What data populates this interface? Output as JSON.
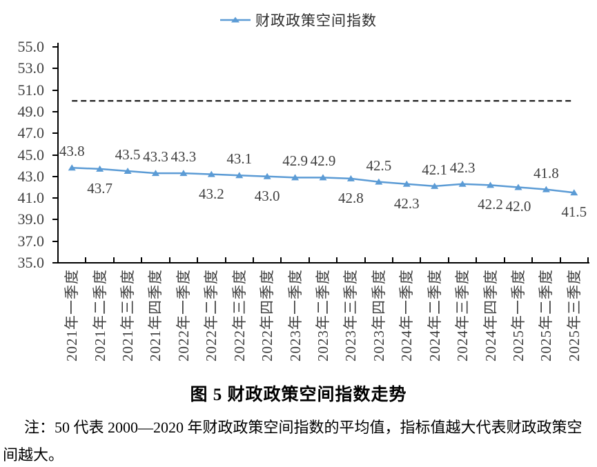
{
  "figure": {
    "title": "图 5 财政政策空间指数走势",
    "note": "注：50 代表 2000—2020 年财政政策空间指数的平均值，指标值越大代表财政政策空间越大。"
  },
  "chart_data": {
    "type": "line",
    "legend": {
      "position": "top",
      "label": "财政政策空间指数"
    },
    "series_color": "#5B9BD5",
    "marker": "triangle-up",
    "grid": false,
    "categories": [
      "2021年一季度",
      "2021年二季度",
      "2021年三季度",
      "2021年四季度",
      "2022年一季度",
      "2022年二季度",
      "2022年三季度",
      "2022年四季度",
      "2023年一季度",
      "2023年二季度",
      "2023年三季度",
      "2023年四季度",
      "2024年一季度",
      "2024年二季度",
      "2024年三季度",
      "2024年四季度",
      "2025年一季度",
      "2025年二季度",
      "2025年三季度"
    ],
    "series": [
      {
        "name": "财政政策空间指数",
        "values": [
          43.8,
          43.7,
          43.5,
          43.3,
          43.3,
          43.2,
          43.1,
          43.0,
          42.9,
          42.9,
          42.8,
          42.5,
          42.3,
          42.1,
          42.3,
          42.2,
          42.0,
          41.8,
          41.5
        ]
      }
    ],
    "data_label_positions": [
      "above",
      "below",
      "above",
      "above",
      "above",
      "below",
      "above",
      "below",
      "above",
      "above",
      "below",
      "above",
      "below",
      "above",
      "above",
      "below",
      "below",
      "above",
      "below"
    ],
    "ylim": [
      35.0,
      55.0
    ],
    "ytick_step": 2.0,
    "ytick_labels": [
      "55.0",
      "53.0",
      "51.0",
      "49.0",
      "47.0",
      "45.0",
      "43.0",
      "41.0",
      "39.0",
      "37.0",
      "35.0"
    ],
    "reference_line": {
      "value": 50.0,
      "style": "dashed",
      "color": "#000000"
    },
    "axis_color": "#000000",
    "text_color": "#3f3f3f"
  }
}
